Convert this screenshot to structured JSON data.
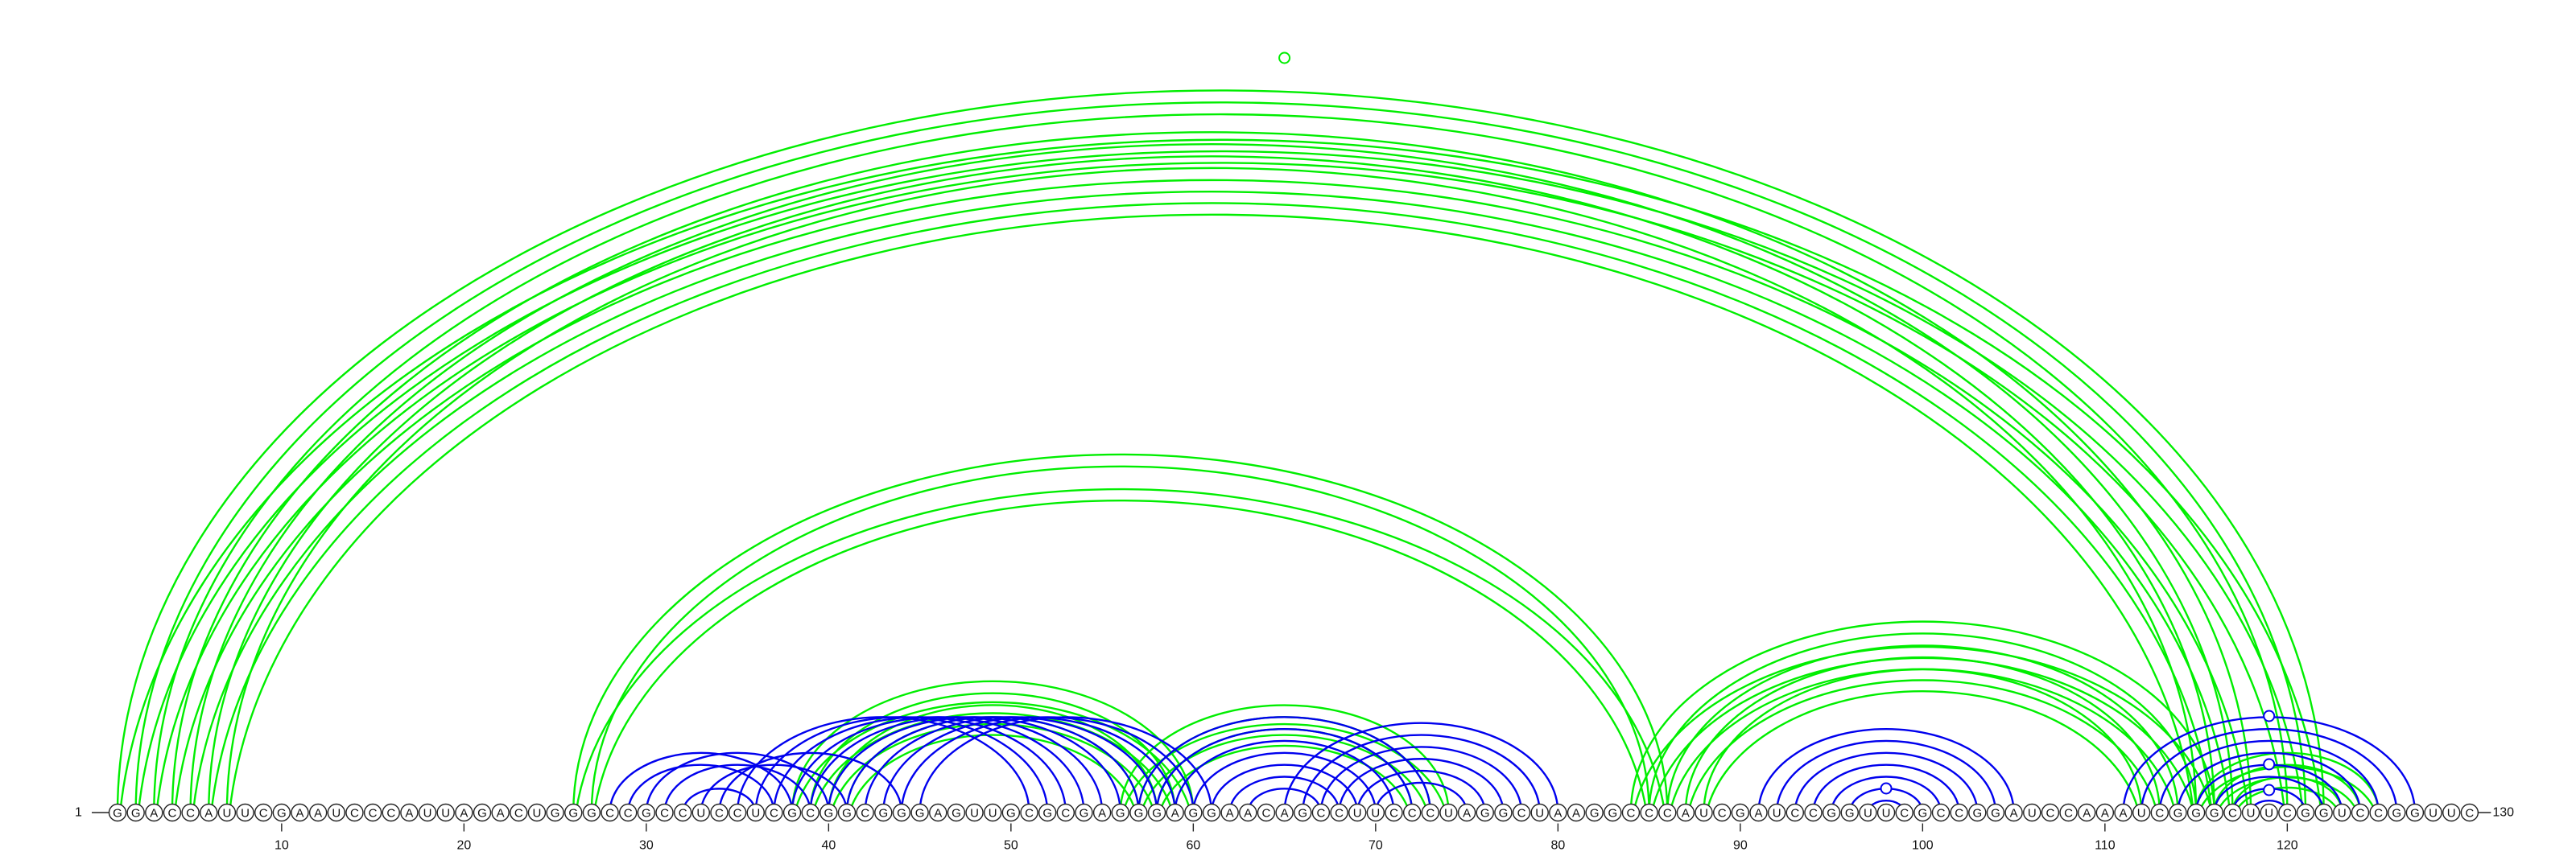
{
  "sequence": "GGACCAUUCGAAUCCCAUUAGACUGGGCCGCCUCCUCGCGGCGGGAGUUGCGCGAGGGAGGAACAGCCUUCCCUAGGCUAAGGCCCAUCGAUCCGGUUCGCCGGAUCCAAAUCGGGCUUCGGUCCGGUUC",
  "start_label": "1",
  "end_label": "130",
  "tick_labels": [
    "10",
    "20",
    "30",
    "40",
    "50",
    "60",
    "70",
    "80",
    "90",
    "100",
    "110",
    "120"
  ],
  "colors": {
    "nested": "#0000ee",
    "pseudoknot": "#00ee00"
  },
  "arcs": {
    "blue_pairs": [
      [
        28,
        38
      ],
      [
        29,
        37
      ],
      [
        30,
        40
      ],
      [
        31,
        39
      ],
      [
        32,
        36
      ],
      [
        33,
        41
      ],
      [
        34,
        44
      ],
      [
        35,
        51
      ],
      [
        36,
        52
      ],
      [
        37,
        53
      ],
      [
        38,
        54
      ],
      [
        39,
        55
      ],
      [
        40,
        56
      ],
      [
        41,
        57
      ],
      [
        42,
        58
      ],
      [
        43,
        59
      ],
      [
        44,
        60
      ],
      [
        45,
        61
      ],
      [
        57,
        73
      ],
      [
        58,
        72
      ],
      [
        59,
        71
      ],
      [
        60,
        70
      ],
      [
        61,
        69
      ],
      [
        62,
        68
      ],
      [
        63,
        67
      ],
      [
        65,
        80
      ],
      [
        66,
        79
      ],
      [
        67,
        78
      ],
      [
        68,
        77
      ],
      [
        69,
        76
      ],
      [
        70,
        75
      ],
      [
        91,
        105
      ],
      [
        92,
        104
      ],
      [
        93,
        103
      ],
      [
        94,
        102
      ],
      [
        95,
        101
      ],
      [
        96,
        100
      ],
      [
        97,
        99
      ],
      [
        111,
        127
      ],
      [
        112,
        126
      ],
      [
        113,
        125
      ],
      [
        114,
        124
      ],
      [
        115,
        123
      ],
      [
        116,
        122
      ],
      [
        117,
        121
      ],
      [
        118,
        120
      ]
    ],
    "green_pairs": [
      [
        1,
        122
      ],
      [
        2,
        121
      ],
      [
        3,
        120
      ],
      [
        4,
        118
      ],
      [
        5,
        117
      ],
      [
        6,
        116
      ],
      [
        7,
        115
      ],
      [
        26,
        86
      ],
      [
        27,
        85
      ],
      [
        38,
        60
      ],
      [
        39,
        59
      ],
      [
        40,
        58
      ],
      [
        41,
        57
      ],
      [
        56,
        74
      ],
      [
        57,
        73
      ],
      [
        58,
        72
      ],
      [
        84,
        116
      ],
      [
        85,
        115
      ],
      [
        86,
        114
      ],
      [
        87,
        113
      ],
      [
        88,
        112
      ],
      [
        115,
        125
      ],
      [
        116,
        124
      ],
      [
        117,
        123
      ]
    ]
  },
  "markers": [
    {
      "color": "green",
      "position": 65
    },
    {
      "color": "blue",
      "position": 119
    },
    {
      "color": "blue",
      "position": 119
    },
    {
      "color": "blue",
      "position": 119
    },
    {
      "color": "blue",
      "position": 98
    }
  ]
}
